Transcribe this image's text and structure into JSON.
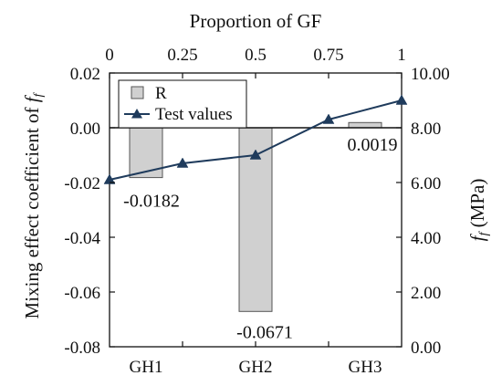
{
  "chart_data": {
    "type": "bar+line",
    "top_axis": {
      "label": "Proportion of GF",
      "ticks": [
        "0",
        "0.25",
        "0.5",
        "0.75",
        "1"
      ],
      "range": [
        0,
        1
      ]
    },
    "left_axis": {
      "label_prefix": "Mixing effect coefficient of ",
      "label_symbol": "f",
      "label_subscript": "f",
      "range": [
        -0.08,
        0.02
      ],
      "ticks": [
        "0.02",
        "0.00",
        "-0.02",
        "-0.04",
        "-0.06",
        "-0.08"
      ],
      "tick_values": [
        0.02,
        0.0,
        -0.02,
        -0.04,
        -0.06,
        -0.08
      ]
    },
    "right_axis": {
      "label_symbol": "f",
      "label_subscript": "f",
      "label_suffix": " (MPa)",
      "range": [
        0,
        10
      ],
      "ticks": [
        "10.00",
        "8.00",
        "6.00",
        "4.00",
        "2.00",
        "0.00"
      ],
      "tick_values": [
        10,
        8,
        6,
        4,
        2,
        0
      ]
    },
    "categories": [
      "GH1",
      "GH2",
      "GH3"
    ],
    "category_positions": [
      0.125,
      0.5,
      0.875
    ],
    "bars": {
      "name": "R",
      "values": [
        -0.0182,
        -0.0671,
        0.0019
      ],
      "labels": [
        "-0.0182",
        "-0.0671",
        "0.0019"
      ],
      "color": "#d0d0d0"
    },
    "line": {
      "name": "Test values",
      "x": [
        0,
        0.25,
        0.5,
        0.75,
        1
      ],
      "y": [
        6.1,
        6.7,
        7.0,
        8.3,
        9.0
      ],
      "color": "#1f3b5c"
    },
    "legend": {
      "position": "top-left",
      "entries": [
        "R",
        "Test values"
      ]
    },
    "grid": false
  }
}
